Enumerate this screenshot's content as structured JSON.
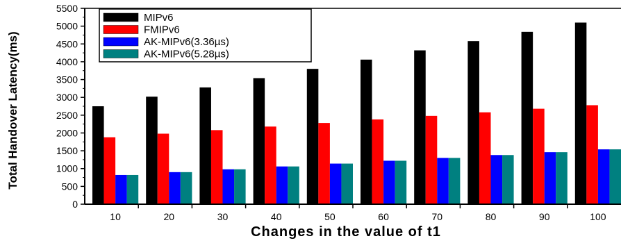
{
  "chart_data": {
    "type": "bar",
    "title": "",
    "xlabel": "Changes in the value of t1",
    "ylabel": "Total Handover Latency(ms)",
    "categories": [
      "10",
      "20",
      "30",
      "40",
      "50",
      "60",
      "70",
      "80",
      "90",
      "100"
    ],
    "yticks": [
      "0",
      "500",
      "1000",
      "1500",
      "2000",
      "2500",
      "3000",
      "3500",
      "4000",
      "4500",
      "5000",
      "5500"
    ],
    "ylim": [
      0,
      5500
    ],
    "grid": false,
    "legend_position": "top-left",
    "series": [
      {
        "name": "MIPv6",
        "color": "#000000",
        "values": [
          2750,
          3020,
          3280,
          3540,
          3800,
          4060,
          4320,
          4580,
          4840,
          5100
        ]
      },
      {
        "name": "FMIPv6",
        "color": "#ff0000",
        "values": [
          1880,
          1980,
          2080,
          2180,
          2280,
          2380,
          2480,
          2580,
          2680,
          2780
        ]
      },
      {
        "name": "AK-MIPv6(3.36µs)",
        "color": "#0000ff",
        "values": [
          820,
          900,
          980,
          1060,
          1140,
          1220,
          1300,
          1380,
          1460,
          1540
        ]
      },
      {
        "name": "AK-MIPv6(5.28µs)",
        "color": "#008080",
        "values": [
          820,
          900,
          980,
          1060,
          1140,
          1220,
          1300,
          1380,
          1460,
          1540
        ]
      }
    ]
  }
}
